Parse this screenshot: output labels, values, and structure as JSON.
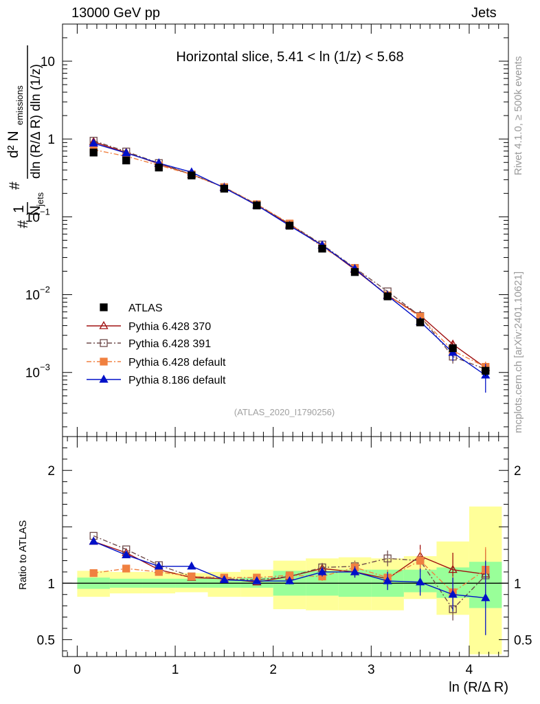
{
  "header": {
    "left": "13000 GeV pp",
    "right": "Jets",
    "side_top": "Rivet 4.1.0, ≥ 500k events",
    "side_bottom": "mcplots.cern.ch [arXiv:2401.10621]"
  },
  "chart_data": [
    {
      "type": "scatter",
      "title": "Horizontal slice, 5.41 < ln (1/z) < 5.68",
      "watermark": "(ATLAS_2020_I1790256)",
      "ylabel_lines": [
        "#",
        "1",
        "N",
        "jets",
        "#",
        "d² N",
        "emissions",
        "dln (R/Δ R) dln (1/z)"
      ],
      "yscale": "log",
      "ylim": [
        0.00015,
        30
      ],
      "xlim": [
        -0.15,
        4.4
      ],
      "y_ticks": [
        {
          "value": 10,
          "label": "10"
        },
        {
          "value": 1,
          "label": "1"
        },
        {
          "value": 0.1,
          "label": "10",
          "exp": "−1"
        },
        {
          "value": 0.01,
          "label": "10",
          "exp": "−2"
        },
        {
          "value": 0.001,
          "label": "10",
          "exp": "−3"
        }
      ],
      "x": [
        0.167,
        0.5,
        0.833,
        1.167,
        1.5,
        1.833,
        2.167,
        2.5,
        2.833,
        3.167,
        3.5,
        3.833,
        4.167
      ],
      "series": [
        {
          "name": "ATLAS",
          "color": "#000000",
          "marker": "filled-square",
          "values": [
            0.67,
            0.53,
            0.43,
            0.34,
            0.23,
            0.14,
            0.077,
            0.039,
            0.0195,
            0.0095,
            0.0044,
            0.00205,
            0.00105
          ],
          "errors": [
            0.02,
            0.015,
            0.012,
            0.01,
            0.007,
            0.004,
            0.003,
            0.0015,
            0.0008,
            0.0005,
            0.0003,
            0.0002,
            0.00015
          ]
        },
        {
          "name": "Pythia 6.428 370",
          "color": "#a01010",
          "marker": "open-triangle",
          "line": "solid",
          "values": [
            0.92,
            0.67,
            0.48,
            0.35,
            0.24,
            0.14,
            0.08,
            0.043,
            0.021,
            0.0098,
            0.0054,
            0.0023,
            0.00115
          ],
          "errors": [
            0,
            0,
            0,
            0,
            0,
            0,
            0,
            0,
            0,
            0.0003,
            0.0004,
            0.0003,
            0.0002
          ]
        },
        {
          "name": "Pythia 6.428 391",
          "color": "#6e4a4a",
          "marker": "open-square",
          "line": "dashdot",
          "values": [
            0.95,
            0.69,
            0.49,
            0.35,
            0.24,
            0.145,
            0.081,
            0.044,
            0.022,
            0.011,
            0.0053,
            0.0016,
            0.0011
          ],
          "errors": [
            0,
            0,
            0,
            0,
            0,
            0,
            0,
            0,
            0,
            0.0003,
            0.0004,
            0.0003,
            0.0002
          ]
        },
        {
          "name": "Pythia 6.428 default",
          "color": "#f08040",
          "marker": "filled-square",
          "line": "dashdot",
          "values": [
            0.73,
            0.6,
            0.46,
            0.35,
            0.24,
            0.145,
            0.082,
            0.041,
            0.022,
            0.0098,
            0.0052,
            0.0019,
            0.00118
          ],
          "errors": [
            0,
            0,
            0,
            0,
            0,
            0,
            0,
            0,
            0,
            0.0003,
            0.0004,
            0.0003,
            0.0002
          ]
        },
        {
          "name": "Pythia 8.186 default",
          "color": "#0010c8",
          "marker": "filled-triangle",
          "line": "solid",
          "values": [
            0.88,
            0.66,
            0.49,
            0.375,
            0.235,
            0.141,
            0.077,
            0.043,
            0.0215,
            0.0097,
            0.0045,
            0.0018,
            0.00092
          ],
          "errors": [
            0,
            0,
            0,
            0,
            0,
            0,
            0,
            0,
            0,
            0.0004,
            0.0005,
            0.0004,
            0.00037
          ]
        }
      ]
    },
    {
      "type": "scatter",
      "ylabel": "Ratio to ATLAS",
      "xlabel": "ln (R/Δ R)",
      "ylim": [
        0.35,
        2.3
      ],
      "xlim": [
        -0.15,
        4.4
      ],
      "y_ticks": [
        {
          "value": 0.5,
          "label": "0.5"
        },
        {
          "value": 1,
          "label": "1"
        },
        {
          "value": 2,
          "label": "2"
        }
      ],
      "x_ticks": [
        {
          "value": 0,
          "label": "0"
        },
        {
          "value": 1,
          "label": "1"
        },
        {
          "value": 2,
          "label": "2"
        },
        {
          "value": 3,
          "label": "3"
        },
        {
          "value": 4,
          "label": "4"
        }
      ],
      "bands": {
        "edges": [
          0,
          0.333,
          0.667,
          1,
          1.333,
          1.667,
          2,
          2.333,
          2.667,
          3,
          3.333,
          3.667,
          4,
          4.333
        ],
        "green_low": [
          0.95,
          0.96,
          0.96,
          0.96,
          0.96,
          0.96,
          0.89,
          0.89,
          0.88,
          0.88,
          0.92,
          0.87,
          0.78
        ],
        "green_high": [
          1.05,
          1.04,
          1.04,
          1.04,
          1.04,
          1.05,
          1.11,
          1.11,
          1.12,
          1.12,
          1.12,
          1.14,
          1.19
        ],
        "yellow_low": [
          0.88,
          0.91,
          0.91,
          0.92,
          0.88,
          0.88,
          0.77,
          0.76,
          0.76,
          0.76,
          0.86,
          0.72,
          0.37
        ],
        "yellow_high": [
          1.11,
          1.1,
          1.1,
          1.09,
          1.1,
          1.12,
          1.2,
          1.22,
          1.23,
          1.22,
          1.24,
          1.37,
          1.68
        ],
        "green_color": "#99ff99",
        "yellow_color": "#ffff99"
      },
      "series": [
        {
          "name": "Pythia 6.428 370",
          "color": "#a01010",
          "marker": "open-triangle",
          "line": "solid",
          "values": [
            1.37,
            1.27,
            1.12,
            1.05,
            1.04,
            1.01,
            1.06,
            1.13,
            1.1,
            1.04,
            1.24,
            1.12,
            1.08
          ],
          "errors": [
            0,
            0,
            0,
            0,
            0,
            0,
            0.03,
            0.04,
            0.05,
            0.07,
            0.1,
            0.15,
            0.22
          ]
        },
        {
          "name": "Pythia 6.428 391",
          "color": "#6e4a4a",
          "marker": "open-square",
          "line": "dashdot",
          "values": [
            1.42,
            1.3,
            1.16,
            1.06,
            1.04,
            1.03,
            1.06,
            1.14,
            1.15,
            1.22,
            1.2,
            0.77,
            1.07
          ],
          "errors": [
            0,
            0,
            0,
            0,
            0,
            0,
            0.03,
            0.04,
            0.05,
            0.07,
            0.1,
            0.1,
            0.2
          ]
        },
        {
          "name": "Pythia 6.428 default",
          "color": "#f08040",
          "marker": "filled-square",
          "line": "dashdot",
          "values": [
            1.09,
            1.13,
            1.1,
            1.06,
            1.05,
            1.05,
            1.07,
            1.06,
            1.14,
            1.05,
            1.2,
            0.92,
            1.12
          ],
          "errors": [
            0,
            0,
            0,
            0,
            0,
            0,
            0.03,
            0.04,
            0.05,
            0.07,
            0.1,
            0.14,
            0.2
          ]
        },
        {
          "name": "Pythia 8.186 default",
          "color": "#0010c8",
          "marker": "filled-triangle",
          "line": "solid",
          "values": [
            1.37,
            1.25,
            1.15,
            1.15,
            1.03,
            1.02,
            1.02,
            1.1,
            1.1,
            1.02,
            1.01,
            0.9,
            0.87
          ],
          "errors": [
            0,
            0,
            0,
            0,
            0,
            0,
            0.03,
            0.04,
            0.05,
            0.08,
            0.12,
            0.15,
            0.33
          ]
        }
      ]
    }
  ]
}
